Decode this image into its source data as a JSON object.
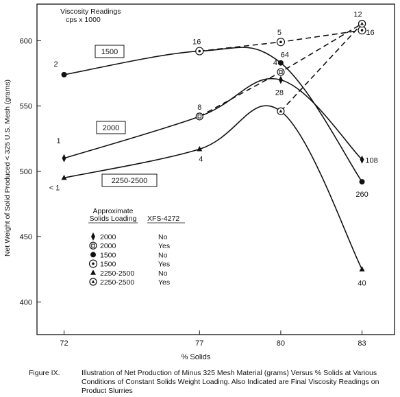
{
  "chart_data": {
    "type": "line",
    "xlabel": "% Solids",
    "ylabel": "Net Weight of Solid Produced < 325 U.S. Mesh (grams)",
    "x_ticks": [
      "72",
      "77",
      "80",
      "83"
    ],
    "y_ticks": [
      "400",
      "450",
      "500",
      "550",
      "600"
    ],
    "xlim": [
      71,
      84.2
    ],
    "ylim": [
      375,
      628
    ],
    "viscosity_header": [
      "Viscosity Readings",
      "cps x 1000"
    ],
    "series": [
      {
        "loading": "2000",
        "xfs": "No",
        "marker": "diamond",
        "line": "solid",
        "points": [
          [
            72,
            510
          ],
          [
            77,
            542
          ],
          [
            80,
            570
          ],
          [
            83,
            509
          ]
        ],
        "labels": [
          "1",
          "",
          "28",
          "108"
        ]
      },
      {
        "loading": "2000",
        "xfs": "Yes",
        "marker": "square-circle",
        "line": "dashed",
        "points": [
          [
            77,
            542
          ],
          [
            80,
            576
          ],
          [
            83,
            613
          ]
        ],
        "labels": [
          "8",
          "4",
          "12"
        ]
      },
      {
        "loading": "1500",
        "xfs": "No",
        "marker": "dot",
        "line": "solid",
        "points": [
          [
            72,
            574
          ],
          [
            77,
            592
          ],
          [
            80,
            583
          ],
          [
            83,
            492
          ]
        ],
        "labels": [
          "2",
          "16",
          "64",
          "260"
        ]
      },
      {
        "loading": "1500",
        "xfs": "Yes",
        "marker": "ring-dot",
        "line": "dashed",
        "points": [
          [
            77,
            592
          ],
          [
            80,
            599
          ],
          [
            83,
            608
          ]
        ],
        "labels": [
          "",
          "5",
          "16"
        ]
      },
      {
        "loading": "2250-2500",
        "xfs": "No",
        "marker": "triangle",
        "line": "solid",
        "points": [
          [
            72,
            495
          ],
          [
            77,
            517
          ],
          [
            80,
            546
          ],
          [
            83,
            425
          ]
        ],
        "labels": [
          "< 1",
          "4",
          "",
          "40"
        ]
      },
      {
        "loading": "2250-2500",
        "xfs": "Yes",
        "marker": "ring-triangle",
        "line": "dashed",
        "points": [
          [
            80,
            546
          ],
          [
            83,
            613
          ]
        ],
        "labels": [
          "",
          ""
        ]
      }
    ],
    "curve_labels": [
      "1500",
      "2000",
      "2250-2500"
    ],
    "legend": {
      "title": [
        "Approximate",
        "Solids Loading"
      ],
      "column2": "XFS-4272",
      "rows": [
        {
          "loading": "2000",
          "xfs": "No",
          "marker": "diamond"
        },
        {
          "loading": "2000",
          "xfs": "Yes",
          "marker": "square-circle"
        },
        {
          "loading": "1500",
          "xfs": "No",
          "marker": "dot"
        },
        {
          "loading": "1500",
          "xfs": "Yes",
          "marker": "ring-dot"
        },
        {
          "loading": "2250-2500",
          "xfs": "No",
          "marker": "triangle"
        },
        {
          "loading": "2250-2500",
          "xfs": "Yes",
          "marker": "ring-triangle"
        }
      ]
    }
  },
  "caption": {
    "figure": "Figure IX.",
    "text": "Illustration of Net Production of Minus 325 Mesh Material (grams) Versus % Solids at Various Conditions of Constant Solids Weight Loading. Also Indicated are Final Viscosity Readings on Product Slurries"
  }
}
